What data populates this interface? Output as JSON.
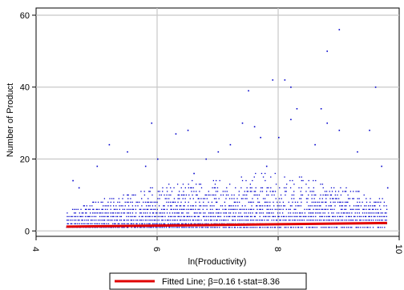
{
  "chart_data": {
    "type": "scatter",
    "title": "",
    "xlabel": "ln(Productivity)",
    "ylabel": "Number of Product",
    "xlim": [
      4,
      10
    ],
    "ylim": [
      0,
      60
    ],
    "xticks": [
      4,
      6,
      8,
      10
    ],
    "yticks": [
      0,
      20,
      40,
      60
    ],
    "xtick_labels": [
      "4",
      "6",
      "8",
      "10"
    ],
    "ytick_labels": [
      "0",
      "20",
      "40",
      "60"
    ],
    "grid": true,
    "legend_position": "bottom",
    "series": [
      {
        "kind": "scatter",
        "color": "#0000cc",
        "points": [
          {
            "x": 9.0,
            "y": 56
          },
          {
            "x": 8.8,
            "y": 50
          },
          {
            "x": 9.6,
            "y": 40
          },
          {
            "x": 7.9,
            "y": 42
          },
          {
            "x": 8.1,
            "y": 42
          },
          {
            "x": 7.5,
            "y": 39
          },
          {
            "x": 8.2,
            "y": 40
          },
          {
            "x": 8.3,
            "y": 34
          },
          {
            "x": 8.7,
            "y": 34
          },
          {
            "x": 8.8,
            "y": 30
          },
          {
            "x": 8.2,
            "y": 31
          },
          {
            "x": 7.4,
            "y": 30
          },
          {
            "x": 7.6,
            "y": 29
          },
          {
            "x": 5.9,
            "y": 30
          },
          {
            "x": 9.5,
            "y": 28
          },
          {
            "x": 9.0,
            "y": 28
          },
          {
            "x": 7.7,
            "y": 26
          },
          {
            "x": 8.6,
            "y": 24
          },
          {
            "x": 6.3,
            "y": 27
          },
          {
            "x": 6.5,
            "y": 28
          },
          {
            "x": 5.2,
            "y": 24
          },
          {
            "x": 5.5,
            "y": 22
          },
          {
            "x": 6.0,
            "y": 20
          },
          {
            "x": 4.6,
            "y": 14
          },
          {
            "x": 4.7,
            "y": 12
          },
          {
            "x": 5.0,
            "y": 18
          },
          {
            "x": 7.0,
            "y": 22
          },
          {
            "x": 7.2,
            "y": 24
          },
          {
            "x": 8.0,
            "y": 26
          },
          {
            "x": 6.8,
            "y": 20
          },
          {
            "x": 9.3,
            "y": 22
          },
          {
            "x": 9.8,
            "y": 12
          },
          {
            "x": 9.7,
            "y": 18
          },
          {
            "x": 7.8,
            "y": 18
          },
          {
            "x": 6.6,
            "y": 16
          },
          {
            "x": 5.8,
            "y": 18
          }
        ],
        "dense_band": {
          "x_range": [
            4.5,
            9.8
          ],
          "y_max_by_x": [
            [
              4.5,
              5
            ],
            [
              5.0,
              8
            ],
            [
              5.5,
              10
            ],
            [
              6.0,
              12
            ],
            [
              6.5,
              14
            ],
            [
              7.0,
              14
            ],
            [
              7.5,
              16
            ],
            [
              8.0,
              16
            ],
            [
              8.5,
              14
            ],
            [
              9.0,
              12
            ],
            [
              9.5,
              10
            ],
            [
              9.8,
              8
            ]
          ]
        }
      },
      {
        "kind": "line",
        "name": "Fitted Line;  β=0.16  t-stat=8.36",
        "color": "#e00000",
        "x": [
          4.5,
          9.8
        ],
        "y": [
          1.2,
          2.2
        ]
      }
    ]
  }
}
